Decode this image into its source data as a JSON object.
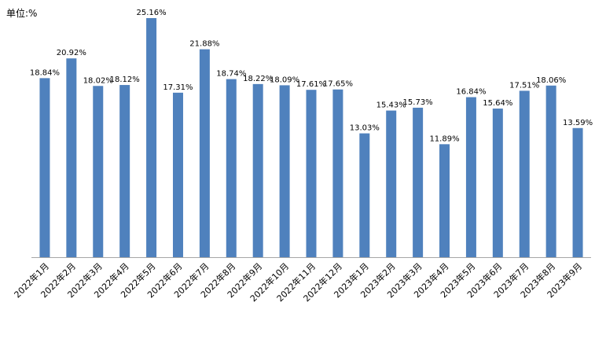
{
  "chart_data": {
    "type": "bar",
    "unit_label": "单位:%",
    "categories": [
      "2022年1月",
      "2022年2月",
      "2022年3月",
      "2022年4月",
      "2022年5月",
      "2022年6月",
      "2022年7月",
      "2022年8月",
      "2022年9月",
      "2022年10月",
      "2022年11月",
      "2022年12月",
      "2023年1月",
      "2023年2月",
      "2023年3月",
      "2023年4月",
      "2023年5月",
      "2023年6月",
      "2023年7月",
      "2023年8月",
      "2023年9月"
    ],
    "values": [
      18.84,
      20.92,
      18.02,
      18.12,
      25.16,
      17.31,
      21.88,
      18.74,
      18.22,
      18.09,
      17.61,
      17.65,
      13.03,
      15.43,
      15.73,
      11.89,
      16.84,
      15.64,
      17.51,
      18.06,
      13.59
    ],
    "value_labels": [
      "18.84%",
      "20.92%",
      "18.02%",
      "18.12%",
      "25.16%",
      "17.31%",
      "21.88%",
      "18.74%",
      "18.22%",
      "18.09%",
      "17.61%",
      "17.65%",
      "13.03%",
      "15.43%",
      "15.73%",
      "11.89%",
      "16.84%",
      "15.64%",
      "17.51%",
      "18.06%",
      "13.59%"
    ],
    "ylim": [
      0,
      25.16
    ],
    "bar_color": "#4F81BD",
    "axis_color": "#A6A6A6",
    "grid": false,
    "legend": "none"
  }
}
